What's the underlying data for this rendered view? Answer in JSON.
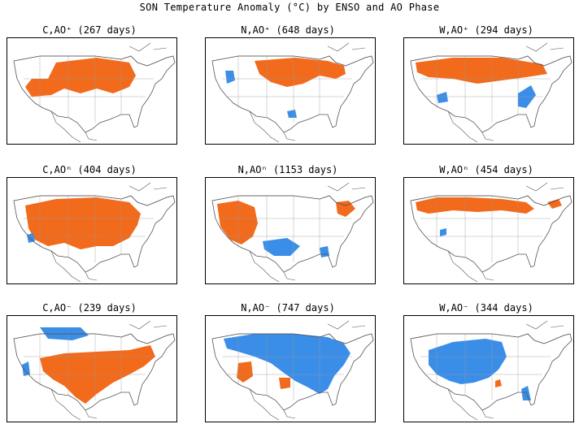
{
  "title": "SON Temperature Anomaly (°C) by ENSO and AO Phase",
  "colors": {
    "warm": "#f26a1b",
    "cool": "#3b8ee8",
    "outline": "#555555"
  },
  "panels": [
    {
      "title": "C,AO⁺ (267 days)",
      "pattern": "warm-north"
    },
    {
      "title": "N,AO⁺ (648 days)",
      "pattern": "warm-north-light"
    },
    {
      "title": "W,AO⁺ (294 days)",
      "pattern": "warm-band"
    },
    {
      "title": "C,AOⁿ (404 days)",
      "pattern": "warm-wide"
    },
    {
      "title": "N,AOⁿ (1153 days)",
      "pattern": "warm-west"
    },
    {
      "title": "W,AOⁿ (454 days)",
      "pattern": "warm-border"
    },
    {
      "title": "C,AO⁻ (239 days)",
      "pattern": "warm-south"
    },
    {
      "title": "N,AO⁻ (747 days)",
      "pattern": "cool-north"
    },
    {
      "title": "W,AO⁻ (344 days)",
      "pattern": "cool-center"
    }
  ]
}
